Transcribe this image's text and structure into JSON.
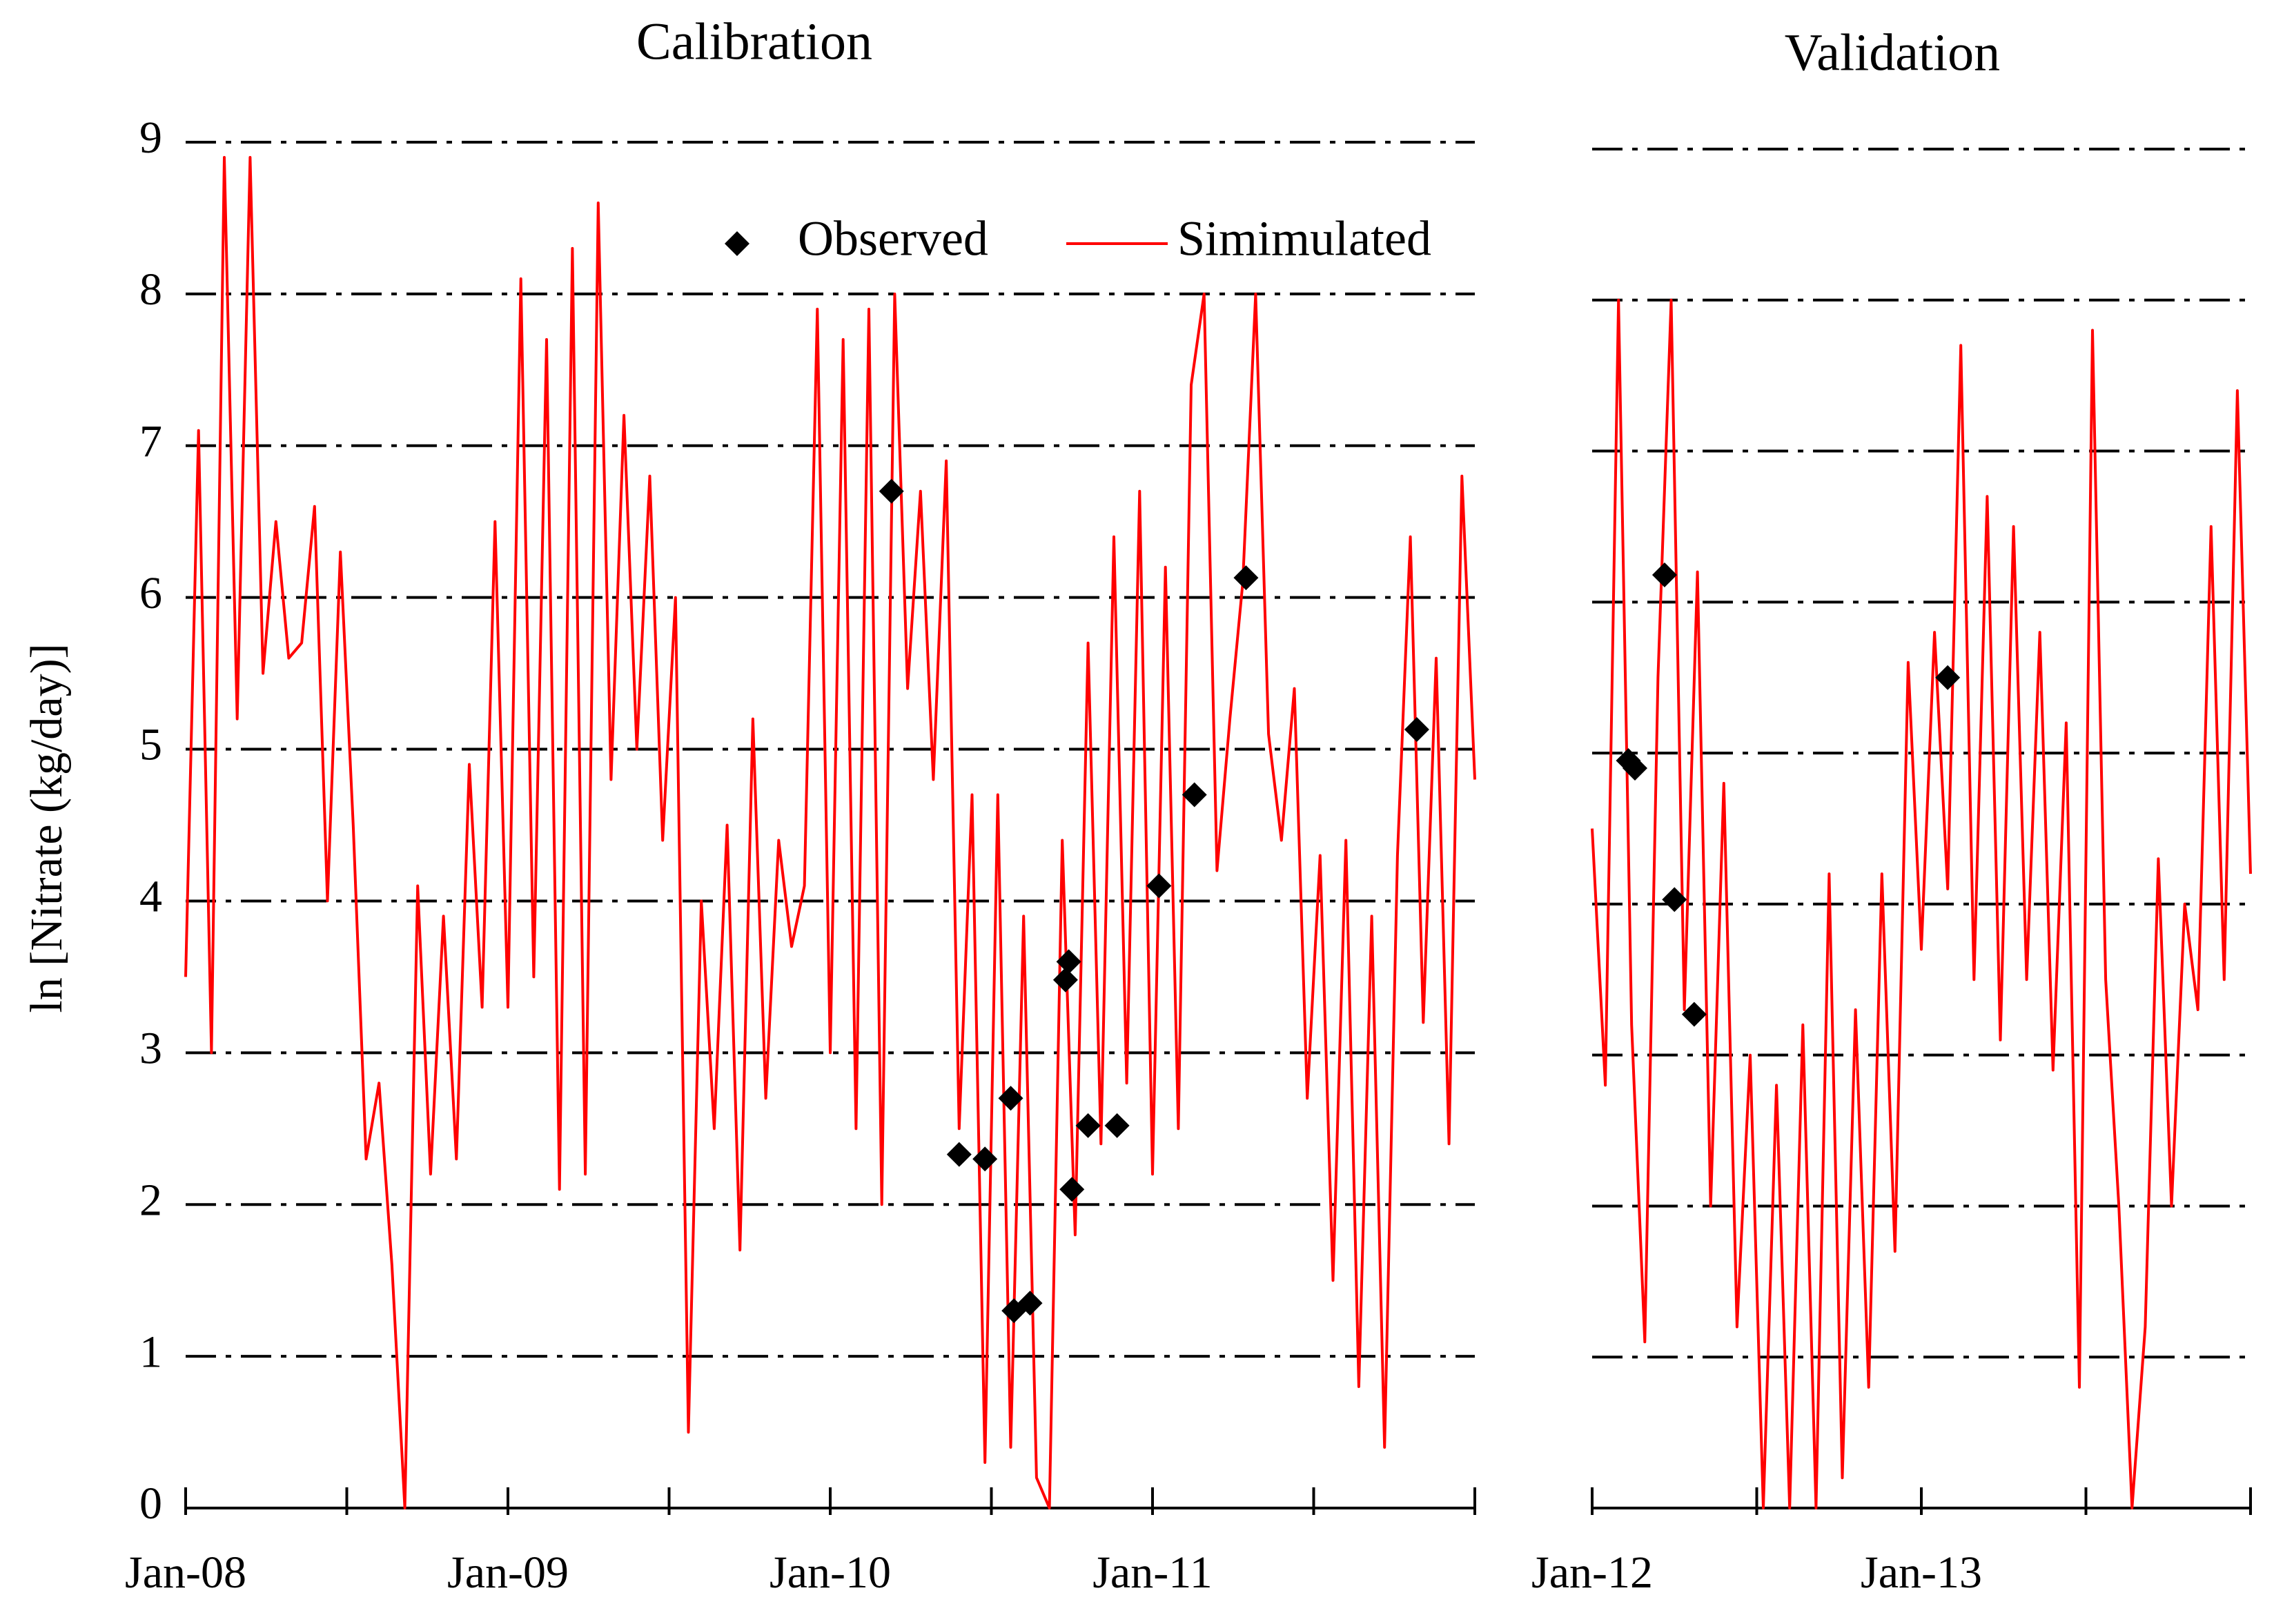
{
  "chart_data": [
    {
      "type": "line",
      "title": "Calibration",
      "ylabel": "ln [Nitrate (kg/day)]",
      "legend": "top",
      "xlim": [
        2008,
        2012
      ],
      "xticks": [
        {
          "value": 2008,
          "label": "Jan-08"
        },
        {
          "value": 2009,
          "label": "Jan-09"
        },
        {
          "value": 2010,
          "label": "Jan-10"
        },
        {
          "value": 2011,
          "label": "Jan-11"
        },
        2012
      ],
      "xminor_ticks": [
        2008.5,
        2009.5,
        2010.5,
        2011.5
      ],
      "ylim": [
        0,
        9
      ],
      "yticks": [
        0,
        1,
        2,
        3,
        4,
        5,
        6,
        7,
        8,
        9
      ],
      "ytick_labels": true,
      "grid": true,
      "series": [
        {
          "name": "Observed",
          "type": "scatter",
          "color": "#000000",
          "x": [
            2010.19,
            2010.4,
            2010.48,
            2010.56,
            2010.57,
            2010.62,
            2010.73,
            2010.74,
            2010.75,
            2010.8,
            2010.89,
            2011.02,
            2011.13,
            2011.29,
            2011.82
          ],
          "values": [
            6.7,
            2.33,
            2.3,
            2.7,
            1.3,
            1.35,
            3.48,
            3.6,
            2.1,
            2.52,
            2.52,
            4.1,
            4.7,
            6.13,
            5.13
          ]
        },
        {
          "name": "Simimulated",
          "type": "line",
          "color": "#ff0000",
          "x": [
            2008.0,
            2008.04,
            2008.08,
            2008.12,
            2008.16,
            2008.2,
            2008.24,
            2008.28,
            2008.32,
            2008.36,
            2008.4,
            2008.44,
            2008.48,
            2008.52,
            2008.56,
            2008.6,
            2008.64,
            2008.68,
            2008.72,
            2008.76,
            2008.8,
            2008.84,
            2008.88,
            2008.92,
            2008.96,
            2009.0,
            2009.04,
            2009.08,
            2009.12,
            2009.16,
            2009.2,
            2009.24,
            2009.28,
            2009.32,
            2009.36,
            2009.4,
            2009.44,
            2009.48,
            2009.52,
            2009.56,
            2009.6,
            2009.64,
            2009.68,
            2009.72,
            2009.76,
            2009.8,
            2009.84,
            2009.88,
            2009.92,
            2009.96,
            2010.0,
            2010.04,
            2010.08,
            2010.12,
            2010.16,
            2010.2,
            2010.24,
            2010.28,
            2010.32,
            2010.36,
            2010.4,
            2010.44,
            2010.48,
            2010.52,
            2010.56,
            2010.6,
            2010.64,
            2010.68,
            2010.72,
            2010.76,
            2010.8,
            2010.84,
            2010.88,
            2010.92,
            2010.96,
            2011.0,
            2011.04,
            2011.08,
            2011.12,
            2011.16,
            2011.2,
            2011.24,
            2011.28,
            2011.32,
            2011.36,
            2011.4,
            2011.44,
            2011.48,
            2011.52,
            2011.56,
            2011.6,
            2011.64,
            2011.68,
            2011.72,
            2011.76,
            2011.8,
            2011.84,
            2011.88,
            2011.92,
            2011.96,
            2012.0
          ],
          "values": [
            3.5,
            7.1,
            3.0,
            8.9,
            5.2,
            8.9,
            5.5,
            6.5,
            5.6,
            5.7,
            6.6,
            4.0,
            6.3,
            4.5,
            2.3,
            2.8,
            1.6,
            0.0,
            4.1,
            2.2,
            3.9,
            2.3,
            4.9,
            3.3,
            6.5,
            3.3,
            8.1,
            3.5,
            7.7,
            2.1,
            8.3,
            2.2,
            8.6,
            4.8,
            7.2,
            5.0,
            6.8,
            4.4,
            6.0,
            0.5,
            4.0,
            2.5,
            4.5,
            1.7,
            5.2,
            2.7,
            4.4,
            3.7,
            4.1,
            7.9,
            3.0,
            7.7,
            2.5,
            7.9,
            2.0,
            8.0,
            5.4,
            6.7,
            4.8,
            6.9,
            2.5,
            4.7,
            0.3,
            4.7,
            0.4,
            3.9,
            0.2,
            0.0,
            4.4,
            1.8,
            5.7,
            2.4,
            6.4,
            2.8,
            6.7,
            2.2,
            6.2,
            2.5,
            7.4,
            8.0,
            4.2,
            5.2,
            6.1,
            8.0,
            5.1,
            4.4,
            5.4,
            2.7,
            4.3,
            1.5,
            4.4,
            0.8,
            3.9,
            0.4,
            4.3,
            6.4,
            3.2,
            5.6,
            2.4,
            6.8,
            4.8
          ]
        }
      ]
    },
    {
      "type": "line",
      "title": "Validation",
      "xlim": [
        2012,
        2014
      ],
      "xticks": [
        {
          "value": 2012,
          "label": "Jan-12"
        },
        {
          "value": 2013,
          "label": "Jan-13"
        },
        2014
      ],
      "xminor_ticks": [
        2012.5,
        2013.5
      ],
      "ylim": [
        0,
        9
      ],
      "yticks": [
        0,
        1,
        2,
        3,
        4,
        5,
        6,
        7,
        8,
        9
      ],
      "ytick_labels": false,
      "grid": true,
      "series": [
        {
          "type": "scatter",
          "color": "#000000",
          "x": [
            2012.11,
            2012.13,
            2012.22,
            2012.25,
            2012.31,
            2013.08
          ],
          "values": [
            4.95,
            4.9,
            6.18,
            4.03,
            3.27,
            5.5
          ]
        },
        {
          "type": "line",
          "color": "#ff0000",
          "x": [
            2012.0,
            2012.04,
            2012.08,
            2012.12,
            2012.16,
            2012.2,
            2012.24,
            2012.28,
            2012.32,
            2012.36,
            2012.4,
            2012.44,
            2012.48,
            2012.52,
            2012.56,
            2012.6,
            2012.64,
            2012.68,
            2012.72,
            2012.76,
            2012.8,
            2012.84,
            2012.88,
            2012.92,
            2012.96,
            2013.0,
            2013.04,
            2013.08,
            2013.12,
            2013.16,
            2013.2,
            2013.24,
            2013.28,
            2013.32,
            2013.36,
            2013.4,
            2013.44,
            2013.48,
            2013.52,
            2013.56,
            2013.6,
            2013.64,
            2013.68,
            2013.72,
            2013.76,
            2013.8,
            2013.84,
            2013.88,
            2013.92,
            2013.96,
            2014.0
          ],
          "values": [
            4.5,
            2.8,
            8.0,
            3.2,
            1.1,
            5.5,
            8.0,
            3.3,
            6.2,
            2.0,
            4.8,
            1.2,
            3.0,
            0.0,
            2.8,
            0.0,
            3.2,
            0.0,
            4.2,
            0.2,
            3.3,
            0.8,
            4.2,
            1.7,
            5.6,
            3.7,
            5.8,
            4.1,
            7.7,
            3.5,
            6.7,
            3.1,
            6.5,
            3.5,
            5.8,
            2.9,
            5.2,
            0.8,
            7.8,
            3.5,
            2.0,
            0.0,
            1.2,
            4.3,
            2.0,
            4.0,
            3.3,
            6.5,
            3.5,
            7.4,
            4.2
          ]
        }
      ]
    }
  ]
}
